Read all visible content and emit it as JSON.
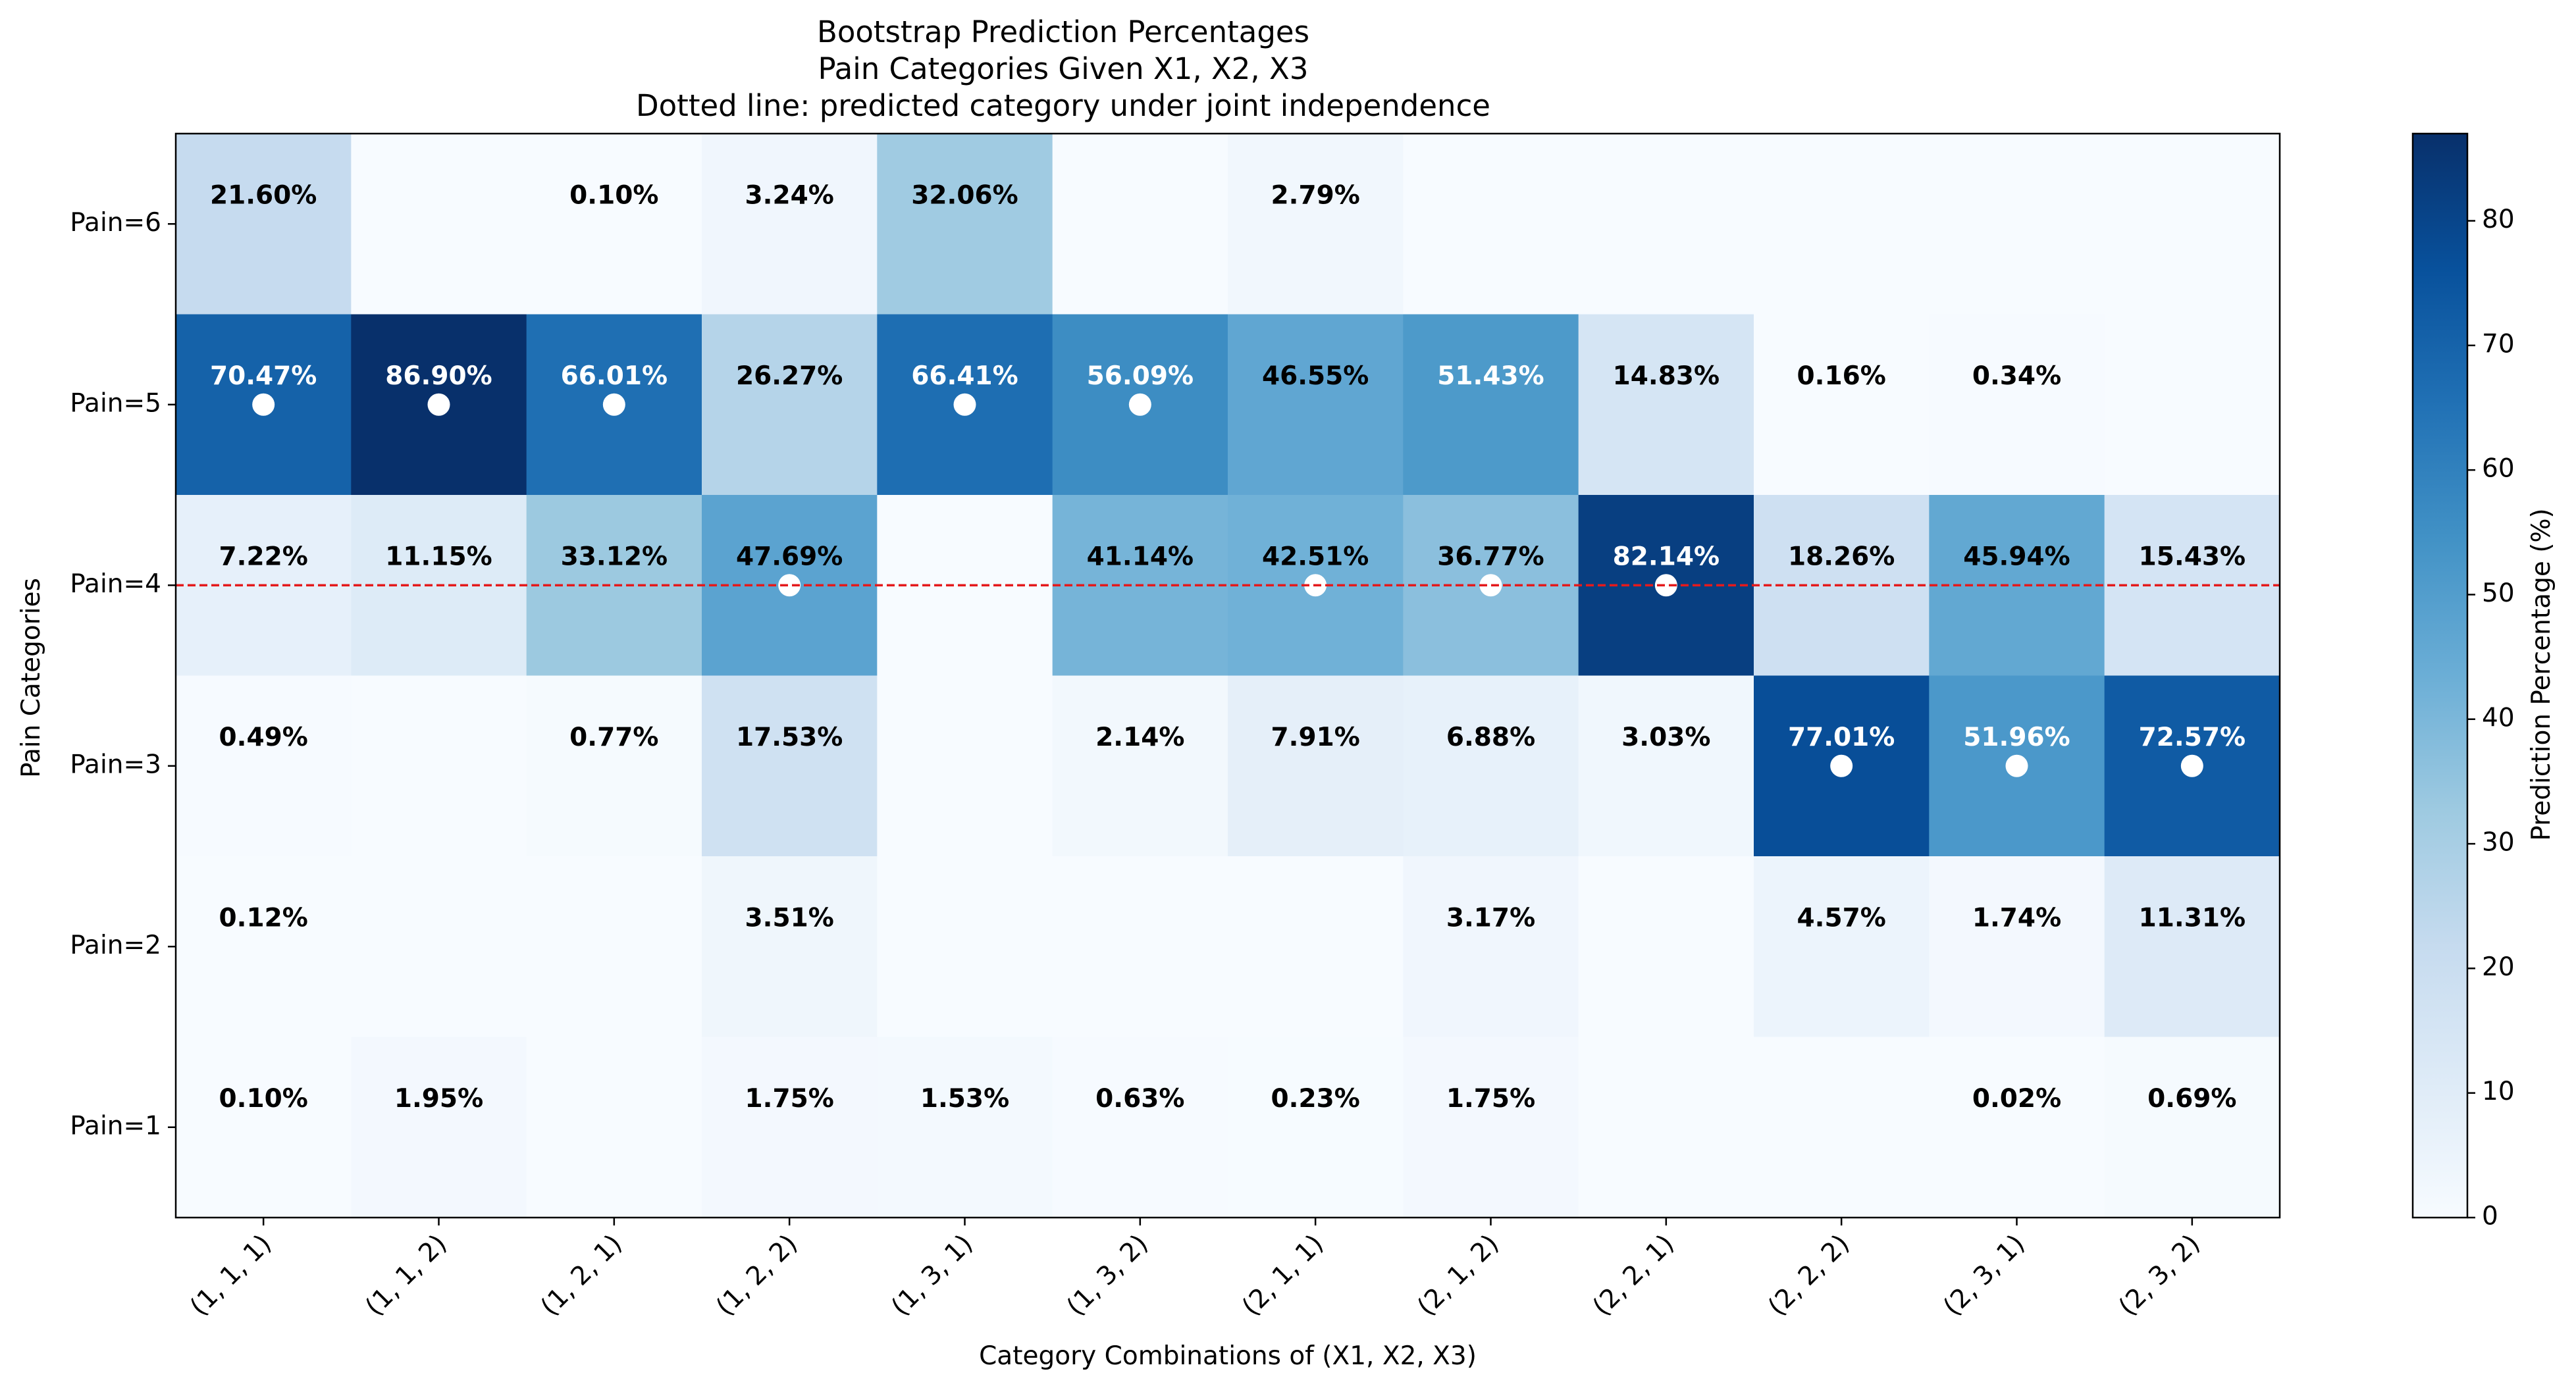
{
  "chart_data": {
    "type": "heatmap",
    "title_lines": [
      "Bootstrap Prediction Percentages",
      "Pain Categories Given X1, X2, X3",
      "Dotted line: predicted category under joint independence"
    ],
    "xlabel": "Category Combinations of (X1, X2, X3)",
    "ylabel": "Pain Categories",
    "x_categories": [
      "(1, 1, 1)",
      "(1, 1, 2)",
      "(1, 2, 1)",
      "(1, 2, 2)",
      "(1, 3, 1)",
      "(1, 3, 2)",
      "(2, 1, 1)",
      "(2, 1, 2)",
      "(2, 2, 1)",
      "(2, 2, 2)",
      "(2, 3, 1)",
      "(2, 3, 2)"
    ],
    "y_categories": [
      "Pain=6",
      "Pain=5",
      "Pain=4",
      "Pain=3",
      "Pain=2",
      "Pain=1"
    ],
    "values": [
      [
        21.6,
        0,
        0.1,
        3.24,
        32.06,
        0,
        2.79,
        0,
        0,
        0,
        0,
        0
      ],
      [
        70.47,
        86.9,
        66.01,
        26.27,
        66.41,
        56.09,
        46.55,
        51.43,
        14.83,
        0.16,
        0.34,
        0
      ],
      [
        7.22,
        11.15,
        33.12,
        47.69,
        0,
        41.14,
        42.51,
        36.77,
        82.14,
        18.26,
        45.94,
        15.43
      ],
      [
        0.49,
        0,
        0.77,
        17.53,
        0,
        2.14,
        7.91,
        6.88,
        3.03,
        77.01,
        51.96,
        72.57
      ],
      [
        0.12,
        0,
        0,
        3.51,
        0,
        0,
        0,
        3.17,
        0,
        4.57,
        1.74,
        11.31
      ],
      [
        0.1,
        1.95,
        0,
        1.75,
        1.53,
        0.63,
        0.23,
        1.75,
        0,
        0,
        0.02,
        0.69
      ]
    ],
    "cell_labels": [
      [
        "21.60%",
        "",
        "0.10%",
        "3.24%",
        "32.06%",
        "",
        "2.79%",
        "",
        "",
        "",
        "",
        ""
      ],
      [
        "70.47%",
        "86.90%",
        "66.01%",
        "26.27%",
        "66.41%",
        "56.09%",
        "46.55%",
        "51.43%",
        "14.83%",
        "0.16%",
        "0.34%",
        ""
      ],
      [
        "7.22%",
        "11.15%",
        "33.12%",
        "47.69%",
        "",
        "41.14%",
        "42.51%",
        "36.77%",
        "82.14%",
        "18.26%",
        "45.94%",
        "15.43%"
      ],
      [
        "0.49%",
        "",
        "0.77%",
        "17.53%",
        "",
        "2.14%",
        "7.91%",
        "6.88%",
        "3.03%",
        "77.01%",
        "51.96%",
        "72.57%"
      ],
      [
        "0.12%",
        "",
        "",
        "3.51%",
        "",
        "",
        "",
        "3.17%",
        "",
        "4.57%",
        "1.74%",
        "11.31%"
      ],
      [
        "0.10%",
        "1.95%",
        "",
        "1.75%",
        "1.53%",
        "0.63%",
        "0.23%",
        "1.75%",
        "",
        "",
        "0.02%",
        "0.69%"
      ]
    ],
    "predicted_category": [
      "Pain=5",
      "Pain=5",
      "Pain=5",
      "Pain=4",
      "Pain=5",
      "Pain=5",
      "Pain=4",
      "Pain=4",
      "Pain=4",
      "Pain=3",
      "Pain=3",
      "Pain=3"
    ],
    "independence_line_category": "Pain=4",
    "colorbar": {
      "label": "Prediction Percentage (%)",
      "ticks": [
        0,
        10,
        20,
        30,
        40,
        50,
        60,
        70,
        80
      ],
      "range": [
        0,
        87
      ],
      "colormap": "Blues"
    },
    "colors": {
      "independence_line": "#e41a1c",
      "marker": "#ffffff",
      "dark_text": "#000000",
      "light_text": "#ffffff"
    }
  }
}
